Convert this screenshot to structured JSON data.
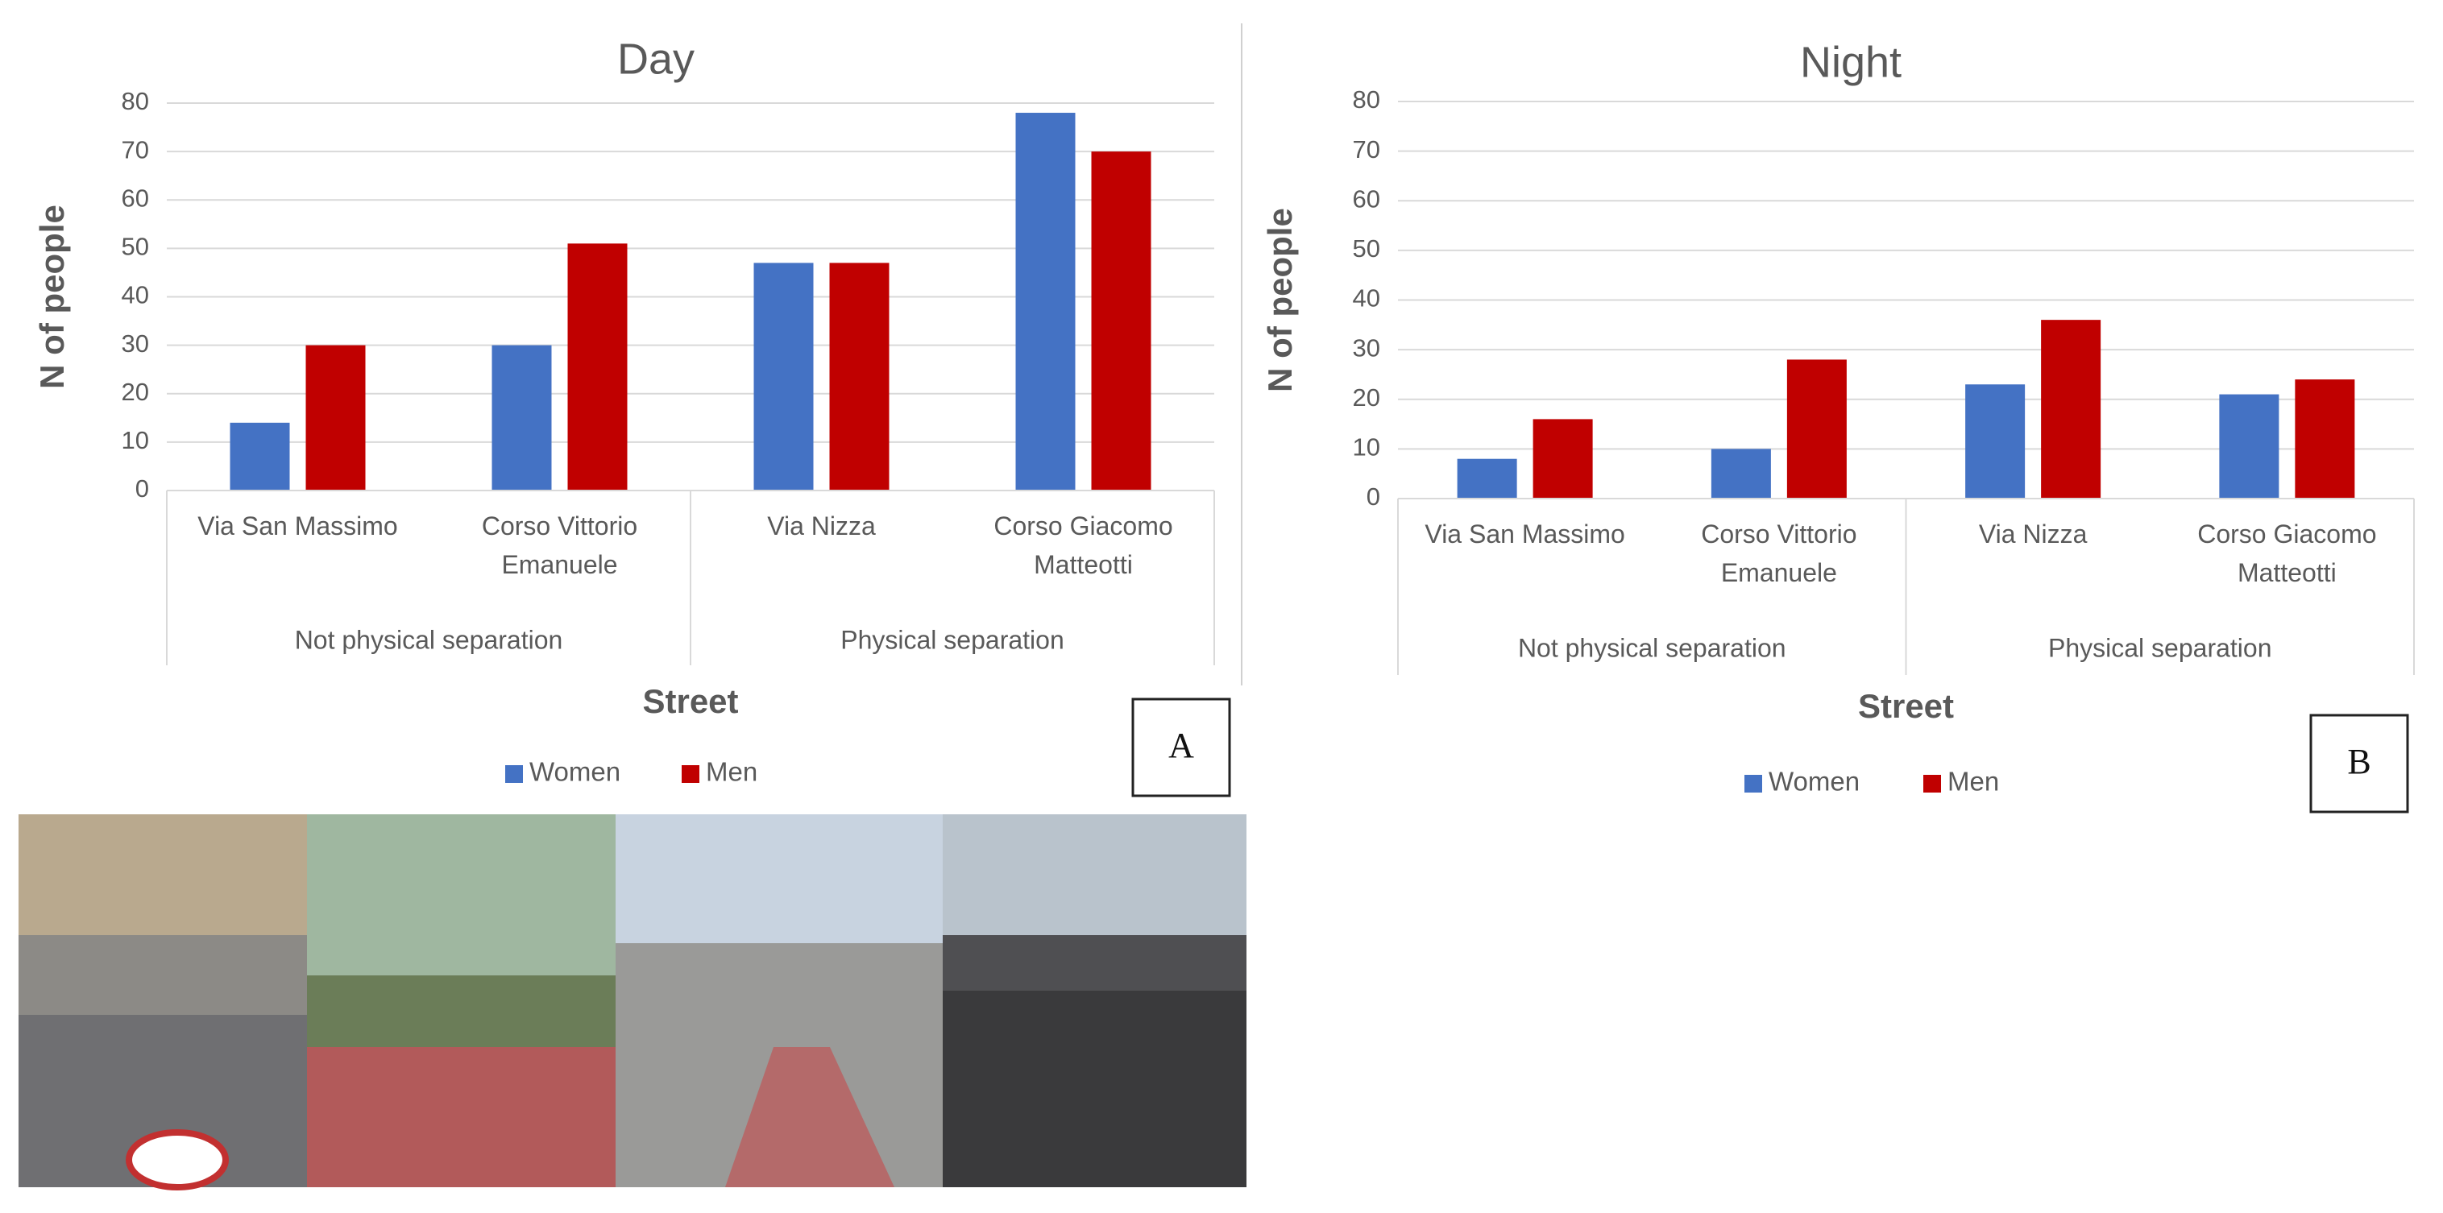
{
  "chart_data": [
    {
      "type": "bar",
      "title": "Day",
      "panel_label": "A",
      "xlabel": "Street",
      "ylabel": "N of people",
      "groups": [
        {
          "name": "Not physical separation",
          "categories": [
            "Via San Massimo",
            "Corso Vittorio Emanuele"
          ]
        },
        {
          "name": "Physical separation",
          "categories": [
            "Via Nizza",
            "Corso Giacomo Matteotti"
          ]
        }
      ],
      "series": [
        {
          "name": "Women",
          "color": "#4472c4",
          "values": [
            14,
            30,
            47,
            78
          ]
        },
        {
          "name": "Men",
          "color": "#c00000",
          "values": [
            30,
            51,
            47,
            70
          ]
        }
      ],
      "ylim": [
        0,
        80
      ],
      "yticks": [
        0,
        10,
        20,
        30,
        40,
        50,
        60,
        70,
        80
      ],
      "grid": true,
      "legend": "bottom"
    },
    {
      "type": "bar",
      "title": "Night",
      "panel_label": "B",
      "xlabel": "Street",
      "ylabel": "N of people",
      "groups": [
        {
          "name": "Not physical separation",
          "categories": [
            "Via San Massimo",
            "Corso Vittorio Emanuele"
          ]
        },
        {
          "name": "Physical separation",
          "categories": [
            "Via Nizza",
            "Corso Giacomo Matteotti"
          ]
        }
      ],
      "series": [
        {
          "name": "Women",
          "color": "#4472c4",
          "values": [
            8,
            10,
            23,
            21
          ]
        },
        {
          "name": "Men",
          "color": "#c00000",
          "values": [
            16,
            28,
            36,
            24
          ]
        }
      ],
      "ylim": [
        0,
        80
      ],
      "yticks": [
        0,
        10,
        20,
        30,
        40,
        50,
        60,
        70,
        80
      ],
      "grid": true,
      "legend": "bottom"
    }
  ]
}
